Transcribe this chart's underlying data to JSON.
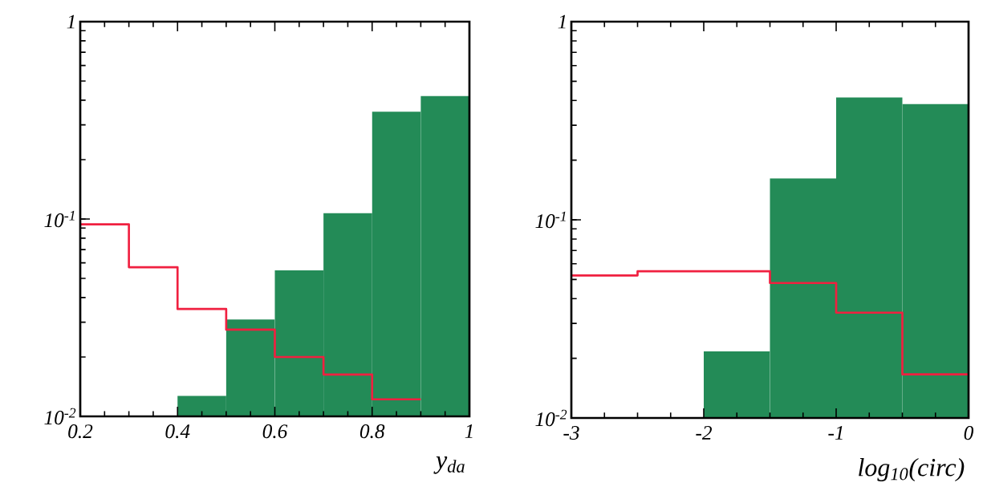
{
  "chart_data": [
    {
      "type": "histogram",
      "xlabel": "y$_{da}$",
      "log": true,
      "bins": [
        0.2,
        0.3,
        0.4,
        0.5,
        0.6,
        0.7,
        0.8,
        0.9,
        1.0
      ],
      "xlim": [
        0.2,
        1
      ],
      "ylim": [
        0.01,
        1
      ],
      "xticks": [
        0.2,
        0.4,
        0.6,
        0.8,
        1
      ],
      "yticks": [
        {
          "value": 0.01,
          "label": "10$^{-2}$"
        },
        {
          "value": 0.1,
          "label": "10$^{-1}$"
        },
        {
          "value": 1,
          "label": "1"
        }
      ],
      "series": [
        {
          "color": "#238b57",
          "values": [
            null,
            null,
            0.0127,
            0.031,
            0.055,
            0.107,
            0.35,
            0.42
          ]
        },
        {
          "type": "step",
          "color": "#f02040",
          "x": [
            0.2,
            0.3,
            0.4,
            0.5,
            0.6,
            0.7,
            0.8,
            0.9
          ],
          "values": [
            0.094,
            0.057,
            0.035,
            0.0275,
            0.02,
            0.0163,
            0.0122,
            0.0122
          ]
        }
      ]
    },
    {
      "type": "histogram",
      "xlabel": "log$_{10}$(circ)",
      "log": true,
      "bins": [
        -3,
        -2.5,
        -2,
        -1.5,
        -1,
        -0.5,
        0
      ],
      "xlim": [
        -3,
        0
      ],
      "ylim": [
        0.01,
        1
      ],
      "xticks": [
        -3,
        -2,
        -1,
        0
      ],
      "yticks": [
        {
          "value": 0.01,
          "label": "10$^{-2}$"
        },
        {
          "value": 0.1,
          "label": "10$^{-1}$"
        },
        {
          "value": 1,
          "label": "1"
        }
      ],
      "series": [
        {
          "color": "#238b57",
          "values": [
            null,
            null,
            0.0217,
            0.162,
            0.414,
            0.384
          ]
        },
        {
          "type": "step",
          "color": "#f02040",
          "x": [
            -3,
            -2.5,
            -2,
            -1.5,
            -1,
            -0.5,
            0
          ],
          "values": [
            0.0524,
            0.055,
            0.055,
            0.048,
            0.034,
            0.0166,
            0.0166
          ]
        }
      ]
    }
  ]
}
